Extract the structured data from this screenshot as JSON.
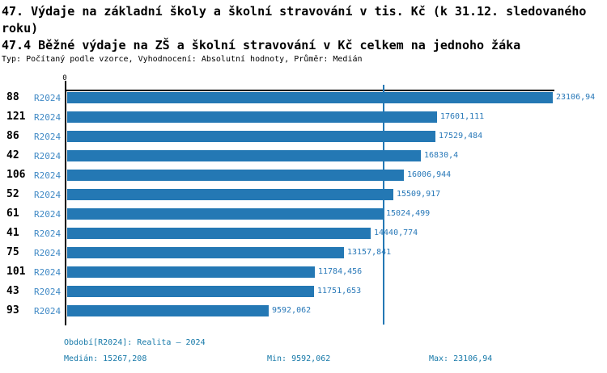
{
  "header": {
    "title_line1": "47. Výdaje na základní školy a školní stravování v tis. Kč (k 31.12. sledovaného roku)",
    "title_line2": "47.4 Běžné výdaje na ZŠ a školní stravování v Kč celkem na jednoho žáka",
    "type_line": "Typ: Počítaný podle vzorce, Vyhodnocení: Absolutní hodnoty, Průměr: Medián"
  },
  "axis": {
    "zero_label": "0"
  },
  "chart_data": {
    "type": "bar",
    "orientation": "horizontal",
    "title": "47.4 Běžné výdaje na ZŠ a školní stravování v Kč celkem na jednoho žáka",
    "categories": [
      "88",
      "121",
      "86",
      "42",
      "106",
      "52",
      "61",
      "41",
      "75",
      "101",
      "43",
      "93"
    ],
    "series": [
      {
        "name": "R2024",
        "values": [
          23106.94,
          17601.111,
          17529.484,
          16830.4,
          16006.944,
          15509.917,
          15024.499,
          14440.774,
          13157.841,
          11784.456,
          11751.653,
          9592.062
        ],
        "value_labels": [
          "23106,94",
          "17601,111",
          "17529,484",
          "16830,4",
          "16006,944",
          "15509,917",
          "15024,499",
          "14440,774",
          "13157,841",
          "11784,456",
          "11751,653",
          "9592,062"
        ]
      }
    ],
    "xlim": [
      0,
      23106.94
    ],
    "median": 15267.208,
    "legend_position": "none",
    "grid": false,
    "bar_color": "#2478b4",
    "median_line_color": "#2478b4"
  },
  "footer": {
    "period": "Období[R2024]: Realita – 2024",
    "median": "Medián: 15267,208",
    "min": "Min: 9592,062",
    "max": "Max: 23106,94"
  }
}
